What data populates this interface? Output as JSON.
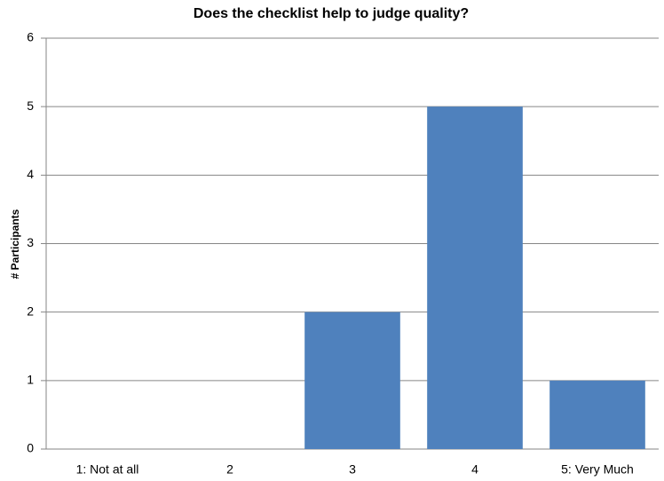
{
  "chart_data": {
    "type": "bar",
    "title": "Does the checklist help to judge quality?",
    "y_label": "# Participants",
    "categories": [
      "1: Not at all",
      "2",
      "3",
      "4",
      "5: Very Much"
    ],
    "values": [
      0,
      0,
      2,
      5,
      1
    ],
    "color": "#4f81bd",
    "ylim": [
      0,
      6
    ],
    "yticks": [
      0,
      1,
      2,
      3,
      4,
      5,
      6
    ],
    "grid": true
  }
}
